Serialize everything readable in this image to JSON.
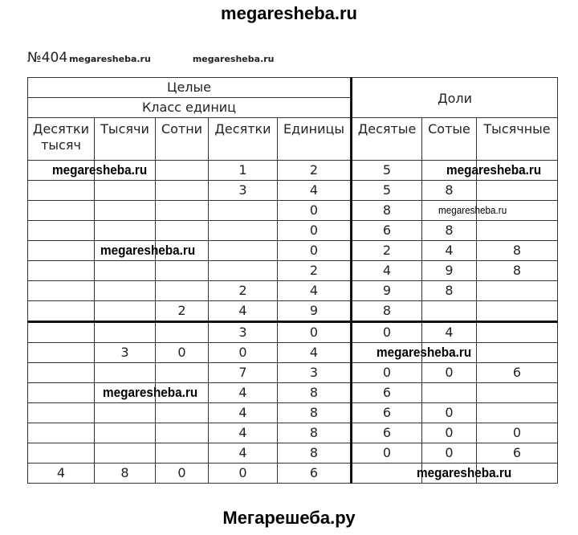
{
  "site_title": "megaresheba.ru",
  "footer": "Мегарешеба.ру",
  "task_number": "№404",
  "watermark": "megaresheba.ru",
  "table": {
    "group_whole": "Целые",
    "class_units": "Класс единиц",
    "group_fraction": "Доли",
    "columns": [
      "Десятки тысяч",
      "Тысячи",
      "Сотни",
      "Десятки",
      "Единицы",
      "Десятые",
      "Сотые",
      "Тысячные"
    ],
    "rows": [
      [
        "",
        "",
        "",
        "1",
        "2",
        "5",
        "",
        ""
      ],
      [
        "",
        "",
        "",
        "3",
        "4",
        "5",
        "8",
        ""
      ],
      [
        "",
        "",
        "",
        "",
        "0",
        "8",
        "",
        ""
      ],
      [
        "",
        "",
        "",
        "",
        "0",
        "6",
        "8",
        ""
      ],
      [
        "",
        "",
        "",
        "",
        "0",
        "2",
        "4",
        "8"
      ],
      [
        "",
        "",
        "",
        "",
        "2",
        "4",
        "9",
        "8"
      ],
      [
        "",
        "",
        "",
        "2",
        "4",
        "9",
        "8",
        ""
      ],
      [
        "",
        "",
        "2",
        "4",
        "9",
        "8",
        "",
        ""
      ],
      [
        "",
        "",
        "",
        "3",
        "0",
        "0",
        "4",
        ""
      ],
      [
        "",
        "3",
        "0",
        "0",
        "4",
        "",
        "",
        ""
      ],
      [
        "",
        "",
        "",
        "7",
        "3",
        "0",
        "0",
        "6"
      ],
      [
        "",
        "",
        "",
        "4",
        "8",
        "6",
        "",
        ""
      ],
      [
        "",
        "",
        "",
        "4",
        "8",
        "6",
        "0",
        ""
      ],
      [
        "",
        "",
        "",
        "4",
        "8",
        "6",
        "0",
        "0"
      ],
      [
        "",
        "",
        "",
        "4",
        "8",
        "0",
        "0",
        "6"
      ],
      [
        "4",
        "8",
        "0",
        "0",
        "6",
        "",
        "",
        ""
      ]
    ]
  }
}
